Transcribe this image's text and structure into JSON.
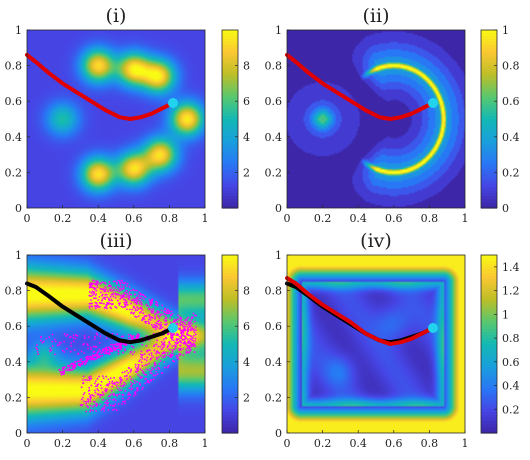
{
  "colors": {
    "red_path": "#e00000",
    "black_path": "#000000",
    "target_point": "#22d3ee",
    "scatter": "#ff00ff",
    "cmap_low": "#3e26a8",
    "cmap_high": "#f9fb15"
  },
  "chart_data": [
    {
      "type": "heatmap",
      "title": "(i)",
      "colormap": "parula",
      "xlim": [
        0,
        1
      ],
      "ylim": [
        0,
        1
      ],
      "xticks": [
        "0",
        "0.2",
        "0.4",
        "0.6",
        "0.8",
        "1"
      ],
      "yticks": [
        "0",
        "0.2",
        "0.4",
        "0.6",
        "0.8",
        "1"
      ],
      "colorbar": {
        "range": [
          0,
          10
        ],
        "ticks": [
          2,
          4,
          6,
          8
        ],
        "tick_labels": [
          "2",
          "4",
          "6",
          "8"
        ]
      },
      "field": {
        "kind": "gaussian_blobs",
        "base": 1.2,
        "sigma": 0.065,
        "blobs": [
          {
            "x": 0.4,
            "y": 0.8,
            "a": 8.0
          },
          {
            "x": 0.6,
            "y": 0.78,
            "a": 8.2
          },
          {
            "x": 0.74,
            "y": 0.74,
            "a": 8.2
          },
          {
            "x": 0.9,
            "y": 0.5,
            "a": 8.5
          },
          {
            "x": 0.2,
            "y": 0.5,
            "a": 4.0
          },
          {
            "x": 0.75,
            "y": 0.3,
            "a": 8.0
          },
          {
            "x": 0.6,
            "y": 0.22,
            "a": 8.0
          },
          {
            "x": 0.4,
            "y": 0.19,
            "a": 8.2
          }
        ]
      },
      "paths": [
        {
          "color": "#e00000",
          "points": [
            [
              0,
              0.86
            ],
            [
              0.05,
              0.82
            ],
            [
              0.12,
              0.76
            ],
            [
              0.2,
              0.7
            ],
            [
              0.28,
              0.65
            ],
            [
              0.36,
              0.6
            ],
            [
              0.44,
              0.55
            ],
            [
              0.52,
              0.51
            ],
            [
              0.58,
              0.5
            ],
            [
              0.64,
              0.51
            ],
            [
              0.7,
              0.53
            ],
            [
              0.76,
              0.56
            ],
            [
              0.82,
              0.59
            ]
          ]
        }
      ],
      "target": {
        "x": 0.82,
        "y": 0.59
      }
    },
    {
      "type": "heatmap",
      "title": "(ii)",
      "colormap": "parula",
      "xlim": [
        0,
        1
      ],
      "ylim": [
        0,
        1
      ],
      "xticks": [
        "0",
        "0.2",
        "0.4",
        "0.6",
        "0.8",
        "1"
      ],
      "yticks": [
        "0",
        "0.2",
        "0.4",
        "0.6",
        "0.8",
        "1"
      ],
      "colorbar": {
        "range": [
          0,
          1
        ],
        "ticks": [
          0,
          0.2,
          0.4,
          0.6,
          0.8,
          1
        ],
        "tick_labels": [
          "0",
          "0.2",
          "0.4",
          "0.6",
          "0.8",
          "1"
        ]
      },
      "field": {
        "kind": "arc_band",
        "contour_levels": 12,
        "arc_center": [
          0.6,
          0.5
        ],
        "arc_radius_x": 0.28,
        "arc_radius_y": 0.3,
        "band_width": 0.045,
        "peak": 0.78,
        "halo": 0.33,
        "extra_blob": {
          "x": 0.2,
          "y": 0.5,
          "a": 0.45
        }
      },
      "paths": [
        {
          "color": "#e00000",
          "points": [
            [
              0,
              0.86
            ],
            [
              0.05,
              0.82
            ],
            [
              0.12,
              0.76
            ],
            [
              0.2,
              0.7
            ],
            [
              0.28,
              0.65
            ],
            [
              0.36,
              0.6
            ],
            [
              0.44,
              0.55
            ],
            [
              0.52,
              0.51
            ],
            [
              0.58,
              0.5
            ],
            [
              0.64,
              0.51
            ],
            [
              0.7,
              0.53
            ],
            [
              0.76,
              0.56
            ],
            [
              0.82,
              0.59
            ]
          ]
        }
      ],
      "target": {
        "x": 0.82,
        "y": 0.59
      }
    },
    {
      "type": "heatmap",
      "title": "(iii)",
      "colormap": "parula",
      "xlim": [
        0,
        1
      ],
      "ylim": [
        0,
        1
      ],
      "xticks": [
        "0",
        "0.2",
        "0.4",
        "0.6",
        "0.8",
        "1"
      ],
      "yticks": [
        "0",
        "0.2",
        "0.4",
        "0.6",
        "0.8",
        "1"
      ],
      "colorbar": {
        "range": [
          0,
          10
        ],
        "ticks": [
          2,
          4,
          6,
          8
        ],
        "tick_labels": [
          "2",
          "4",
          "6",
          "8"
        ]
      },
      "field": {
        "kind": "wedge_bands",
        "apex": [
          0.9,
          0.55
        ],
        "upper_band_y": 0.78,
        "lower_band_y": 0.24,
        "peak": 9.0,
        "base": 2.0
      },
      "paths": [
        {
          "color": "#000000",
          "points": [
            [
              0,
              0.84
            ],
            [
              0.05,
              0.82
            ],
            [
              0.12,
              0.77
            ],
            [
              0.2,
              0.71
            ],
            [
              0.28,
              0.66
            ],
            [
              0.36,
              0.61
            ],
            [
              0.44,
              0.56
            ],
            [
              0.52,
              0.52
            ],
            [
              0.58,
              0.51
            ],
            [
              0.64,
              0.52
            ],
            [
              0.7,
              0.54
            ],
            [
              0.76,
              0.56
            ],
            [
              0.82,
              0.59
            ]
          ]
        }
      ],
      "scatter": {
        "color": "#ff00ff",
        "count": 1400,
        "seed": 7
      },
      "target": {
        "x": 0.82,
        "y": 0.59
      }
    },
    {
      "type": "heatmap",
      "title": "(iv)",
      "colormap": "parula",
      "xlim": [
        0,
        1
      ],
      "ylim": [
        0,
        1
      ],
      "xticks": [
        "0",
        "0.2",
        "0.4",
        "0.6",
        "0.8",
        "1"
      ],
      "yticks": [
        "0",
        "0.2",
        "0.4",
        "0.6",
        "0.8",
        "1"
      ],
      "colorbar": {
        "range": [
          0,
          1.5
        ],
        "ticks": [
          0.2,
          0.4,
          0.6,
          0.8,
          1,
          1.2,
          1.4
        ],
        "tick_labels": [
          "0.2",
          "0.4",
          "0.6",
          "0.8",
          "1",
          "1.2",
          "1.4"
        ]
      },
      "field": {
        "kind": "edge_distance",
        "inner_box": [
          0.08,
          0.15,
          0.88,
          0.85
        ],
        "peak": 1.45,
        "low": 0.15
      },
      "paths": [
        {
          "color": "#000000",
          "points": [
            [
              0,
              0.84
            ],
            [
              0.05,
              0.82
            ],
            [
              0.12,
              0.77
            ],
            [
              0.2,
              0.71
            ],
            [
              0.28,
              0.66
            ],
            [
              0.36,
              0.61
            ],
            [
              0.44,
              0.56
            ],
            [
              0.52,
              0.52
            ],
            [
              0.58,
              0.51
            ],
            [
              0.64,
              0.52
            ],
            [
              0.7,
              0.54
            ],
            [
              0.76,
              0.56
            ],
            [
              0.82,
              0.59
            ]
          ]
        },
        {
          "color": "#e00000",
          "points": [
            [
              0,
              0.87
            ],
            [
              0.05,
              0.84
            ],
            [
              0.12,
              0.78
            ],
            [
              0.2,
              0.72
            ],
            [
              0.28,
              0.67
            ],
            [
              0.36,
              0.62
            ],
            [
              0.44,
              0.56
            ],
            [
              0.52,
              0.52
            ],
            [
              0.58,
              0.5
            ],
            [
              0.64,
              0.51
            ],
            [
              0.7,
              0.53
            ],
            [
              0.76,
              0.56
            ],
            [
              0.82,
              0.59
            ]
          ]
        }
      ],
      "target": {
        "x": 0.82,
        "y": 0.59
      }
    }
  ]
}
